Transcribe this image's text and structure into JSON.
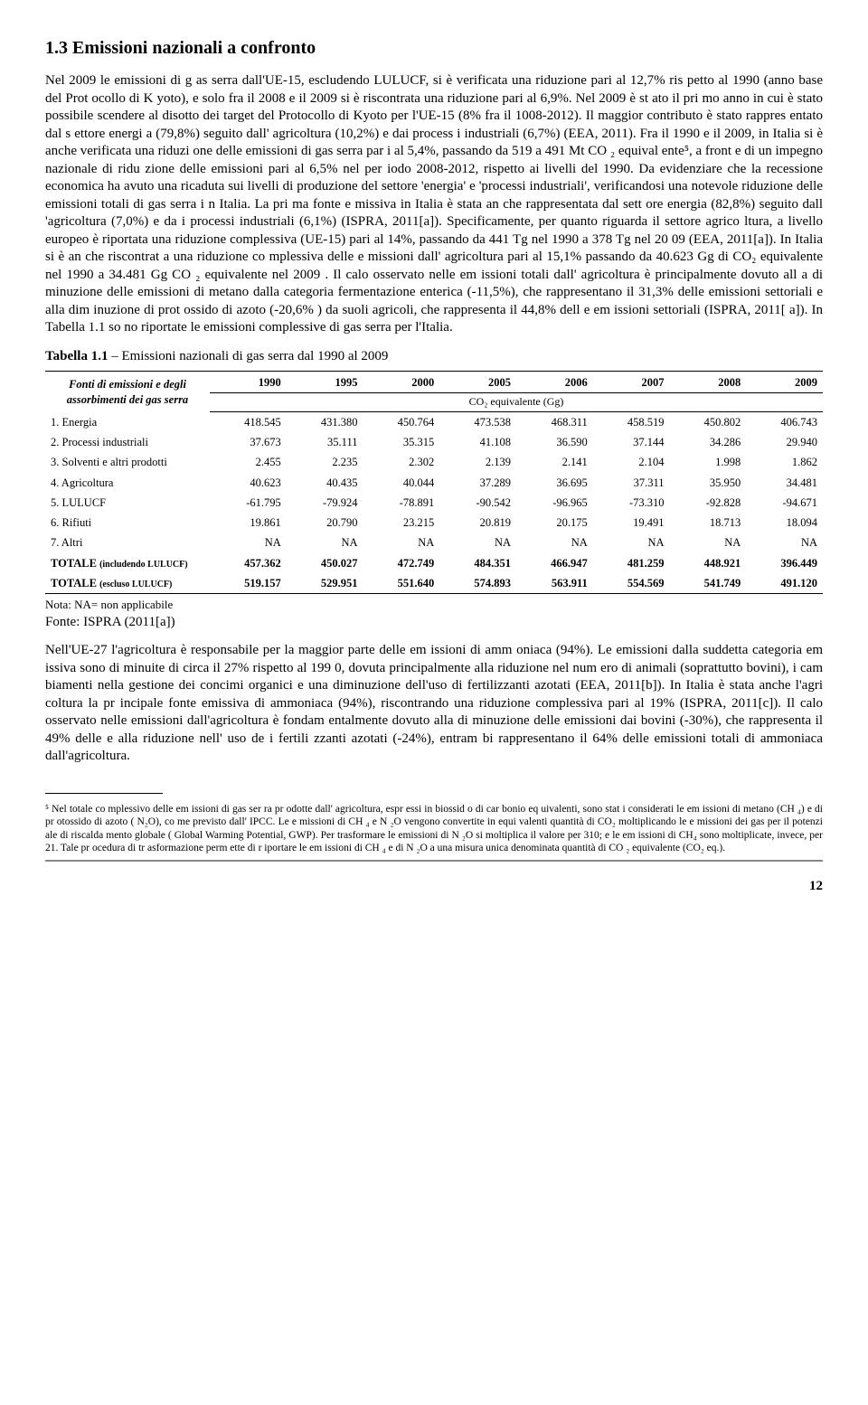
{
  "heading": "1.3 Emissioni nazionali a confronto",
  "para1": "Nel 2009 le emissioni di g as serra dall'UE-15, escludendo LULUCF, si è verificata una riduzione pari al 12,7% ris petto al 1990 (anno base del Prot    ocollo di K yoto), e solo fra il   2008 e il   2009 si  è riscontrata una riduzione pari al 6,9%. Nel 2009 è st ato il pri mo anno in cui è stato possibile scendere al disotto dei target del Protocollo di Kyoto per l'UE-15 (8% fra il 1008-2012). Il maggior contributo è stato rappres entato dal s  ettore energi a (79,8%)   seguito dall' agricoltura (10,2%) e dai    process i industriali (6,7%) (EEA, 2011). Fra il 1990 e il 2009, in Italia si è anche verificata una riduzi one delle emissioni di  gas serra par i al  5,4%, passando da 519 a 491 Mt    CO ₂ equival ente⁵, a front e di  un impegno nazionale di ridu zione delle emissioni pari  al 6,5% nel per iodo 2008-2012, rispetto ai livelli del 1990. Da evidenziare  che la recessione economica ha avuto una ricaduta sui livelli di produzione del settore 'energia' e 'processi industriali', verificandosi una notevole riduzione delle emissioni totali di gas serra i n Italia. La pri ma fonte e missiva in Italia è stata an che rappresentata dal sett ore energia (82,8%) seguito dall   'agricoltura (7,0%) e da    i processi industriali (6,1%) (ISPRA,    2011[a]). Specificamente, per quanto riguarda il settore agrico  ltura, a livello europeo è riportata una riduzione complessiva (UE-15) pari al 14%, passando da 441 Tg nel 1990 a 378 Tg nel 20 09 (EEA, 2011[a]). In Italia si è an che riscontrat a una riduzione co mplessiva delle e missioni dall' agricoltura pari al 15,1% passando da 40.623 Gg di CO₂ equivalente nel 1990  a 34.481 Gg  CO ₂ equivalente nel 2009 . Il calo osservato nelle em  issioni totali dall' agricoltura è principalmente dovuto all   a di minuzione delle emissioni di metano dalla categoria fermentazione enterica (-11,5%), che rappresentano il 31,3% delle emissioni settoriali e alla dim    inuzione di prot  ossido di azoto   (-20,6% ) da suoli agricoli, che rappresenta il 44,8% dell e em issioni settoriali (ISPRA, 2011[ a]). In Tabella 1.1 so no riportate le emissioni complessive di gas serra per l'Italia.",
  "table_heading": "Tabella 1.1 – Emissioni nazionali di gas serra dal 1990 al 2009",
  "table": {
    "row_header": "Fonti di emissioni e degli assorbimenti dei gas serra",
    "years": [
      "1990",
      "1995",
      "2000",
      "2005",
      "2006",
      "2007",
      "2008",
      "2009"
    ],
    "units_label": "CO₂ equivalente (Gg)",
    "rows": [
      {
        "label": "1. Energia",
        "vals": [
          "418.545",
          "431.380",
          "450.764",
          "473.538",
          "468.311",
          "458.519",
          "450.802",
          "406.743"
        ],
        "bold": false
      },
      {
        "label": "2. Processi industriali",
        "vals": [
          "37.673",
          "35.111",
          "35.315",
          "41.108",
          "36.590",
          "37.144",
          "34.286",
          "29.940"
        ],
        "bold": false
      },
      {
        "label": "3. Solventi e altri prodotti",
        "vals": [
          "2.455",
          "2.235",
          "2.302",
          "2.139",
          "2.141",
          "2.104",
          "1.998",
          "1.862"
        ],
        "bold": false
      },
      {
        "label": "4. Agricoltura",
        "vals": [
          "40.623",
          "40.435",
          "40.044",
          "37.289",
          "36.695",
          "37.311",
          "35.950",
          "34.481"
        ],
        "bold": false
      },
      {
        "label": "5. LULUCF",
        "vals": [
          "-61.795",
          "-79.924",
          "-78.891",
          "-90.542",
          "-96.965",
          "-73.310",
          "-92.828",
          "-94.671"
        ],
        "bold": false
      },
      {
        "label": "6. Rifiuti",
        "vals": [
          "19.861",
          "20.790",
          "23.215",
          "20.819",
          "20.175",
          "19.491",
          "18.713",
          "18.094"
        ],
        "bold": false
      },
      {
        "label": "7. Altri",
        "vals": [
          "NA",
          "NA",
          "NA",
          "NA",
          "NA",
          "NA",
          "NA",
          "NA"
        ],
        "bold": false
      },
      {
        "label": "TOTALE (includendo LULUCF)",
        "vals": [
          "457.362",
          "450.027",
          "472.749",
          "484.351",
          "466.947",
          "481.259",
          "448.921",
          "396.449"
        ],
        "bold": true
      },
      {
        "label": "TOTALE (escluso LULUCF)",
        "vals": [
          "519.157",
          "529.951",
          "551.640",
          "574.893",
          "563.911",
          "554.569",
          "541.749",
          "491.120"
        ],
        "bold": true
      }
    ],
    "note": "Nota: NA= non applicabile",
    "source": "Fonte: ISPRA (2011[a])"
  },
  "para2": "Nell'UE-27 l'agricoltura è responsabile per la maggior parte delle em issioni di amm oniaca (94%). Le emissioni dalla suddetta categoria em issiva sono di minuite di circa il 27%  rispetto al 199 0, dovuta principalmente alla riduzione nel num ero di  animali (soprattutto bovini), i cam biamenti nella gestione dei concimi organici e una diminuzione dell'uso di fertilizzanti azotati (EEA, 2011[b]). In Italia è stata anche l'agri coltura la pr incipale fonte emissiva di ammoniaca (94%), riscontrando una riduzione complessiva pari al 19% (ISPRA, 2011[c]). Il calo osservato nelle emissioni dall'agricoltura è fondam entalmente dovuto alla di minuzione delle  emissioni dai bovini (-30%), che rappresenta il 49% delle e alla riduzione nell'  uso de i fertili zzanti azotati (-24%), entram bi rappresentano il 64% delle emissioni totali di ammoniaca dall'agricoltura.",
  "footnote": "⁵ Nel totale co mplessivo delle em issioni di  gas ser ra pr odotte dall' agricoltura, espr essi in biossid o di car bonio eq uivalenti, sono stat i considerati le em issioni di metano (CH ₄) e di pr otossido di azoto ( N₂O), co me previsto dall' IPCC. Le e missioni di CH ₄ e N ₂O vengono convertite in equi valenti quantità di CO₂ moltiplicando le e missioni dei gas per il potenzi  ale di riscalda mento globale ( Global Warming Potential, GWP). Per trasformare le emissioni di N ₂O si moltiplica il valore per 310; e le em issioni di CH₄ sono moltiplicate, invece, per 21. Tale pr ocedura di tr asformazione perm ette di r iportare le em issioni di CH ₄ e di N ₂O a una misura unica denominata quantità di CO ₂ equivalente (CO₂ eq.).",
  "page_number": "12"
}
